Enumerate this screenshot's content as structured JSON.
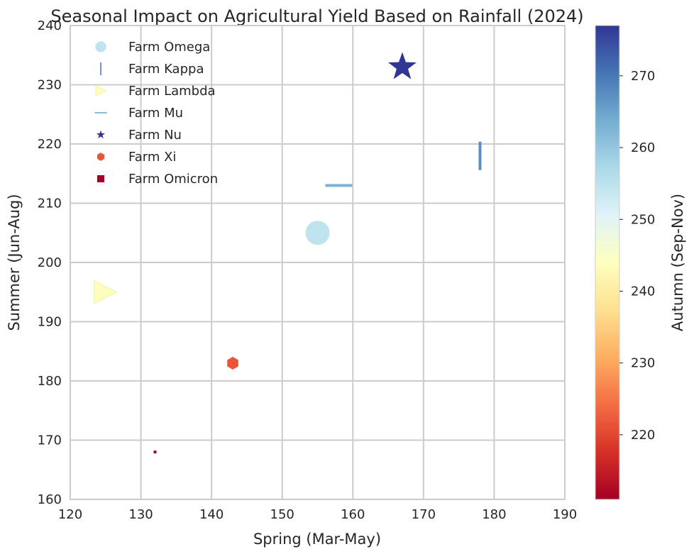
{
  "chart_data": {
    "type": "scatter",
    "title": "Seasonal Impact on Agricultural Yield Based on Rainfall (2024)",
    "xlabel": "Spring (Mar-May)",
    "ylabel": "Summer (Jun-Aug)",
    "colorbar_label": "Autumn (Sep-Nov)",
    "xlim": [
      120,
      190
    ],
    "ylim": [
      160,
      240
    ],
    "xticks": [
      120,
      130,
      140,
      150,
      160,
      170,
      180,
      190
    ],
    "yticks": [
      160,
      170,
      180,
      190,
      200,
      210,
      220,
      230,
      240
    ],
    "colorbar_range": [
      211,
      277
    ],
    "colorbar_ticks": [
      220,
      230,
      240,
      250,
      260,
      270
    ],
    "colormap": "RdYlBu",
    "grid": true,
    "legend_position": "top-left",
    "series": [
      {
        "name": "Farm Omega",
        "marker": "circle",
        "x": 155,
        "y": 205,
        "autumn": 258,
        "color": "#bfe3ef"
      },
      {
        "name": "Farm Kappa",
        "marker": "vline",
        "x": 178,
        "y": 218,
        "autumn": 269,
        "color": "#5a8fc2"
      },
      {
        "name": "Farm Lambda",
        "marker": "triangle-right",
        "x": 125,
        "y": 195,
        "autumn": 245,
        "color": "#fdfebd"
      },
      {
        "name": "Farm Mu",
        "marker": "hline",
        "x": 158,
        "y": 213,
        "autumn": 262,
        "color": "#7ab3d6"
      },
      {
        "name": "Farm Nu",
        "marker": "star",
        "x": 167,
        "y": 233,
        "autumn": 277,
        "color": "#313695"
      },
      {
        "name": "Farm Xi",
        "marker": "hexagon",
        "x": 143,
        "y": 183,
        "autumn": 222,
        "color": "#e95538"
      },
      {
        "name": "Farm Omicron",
        "marker": "square",
        "x": 132,
        "y": 168,
        "autumn": 211,
        "color": "#a50026"
      }
    ]
  }
}
